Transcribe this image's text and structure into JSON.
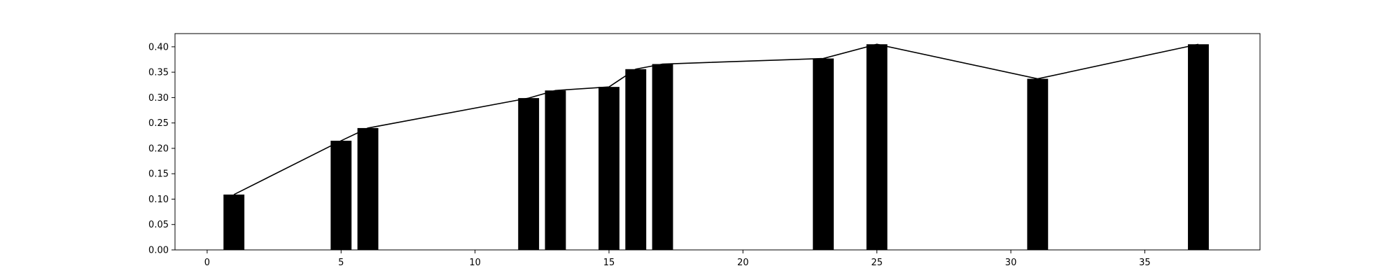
{
  "chart_data": {
    "type": "bar",
    "title": "",
    "xlabel": "",
    "ylabel": "",
    "grid": false,
    "x": [
      1,
      5,
      6,
      12,
      13,
      15,
      16,
      17,
      23,
      25,
      31,
      37
    ],
    "values": [
      0.109,
      0.215,
      0.24,
      0.299,
      0.314,
      0.321,
      0.356,
      0.366,
      0.377,
      0.405,
      0.337,
      0.405
    ],
    "overlay_line": true,
    "xlim": [
      -1.2,
      39.3
    ],
    "ylim": [
      0,
      0.426
    ],
    "xticks": [
      0,
      5,
      10,
      15,
      20,
      25,
      30,
      35
    ],
    "yticks": [
      0.0,
      0.05,
      0.1,
      0.15,
      0.2,
      0.25,
      0.3,
      0.35,
      0.4
    ],
    "xtick_labels": [
      "0",
      "5",
      "10",
      "15",
      "20",
      "25",
      "30",
      "35"
    ],
    "ytick_labels": [
      "0.00",
      "0.05",
      "0.10",
      "0.15",
      "0.20",
      "0.25",
      "0.30",
      "0.35",
      "0.40"
    ],
    "bar_color": "#000000",
    "line_color": "#000000"
  }
}
